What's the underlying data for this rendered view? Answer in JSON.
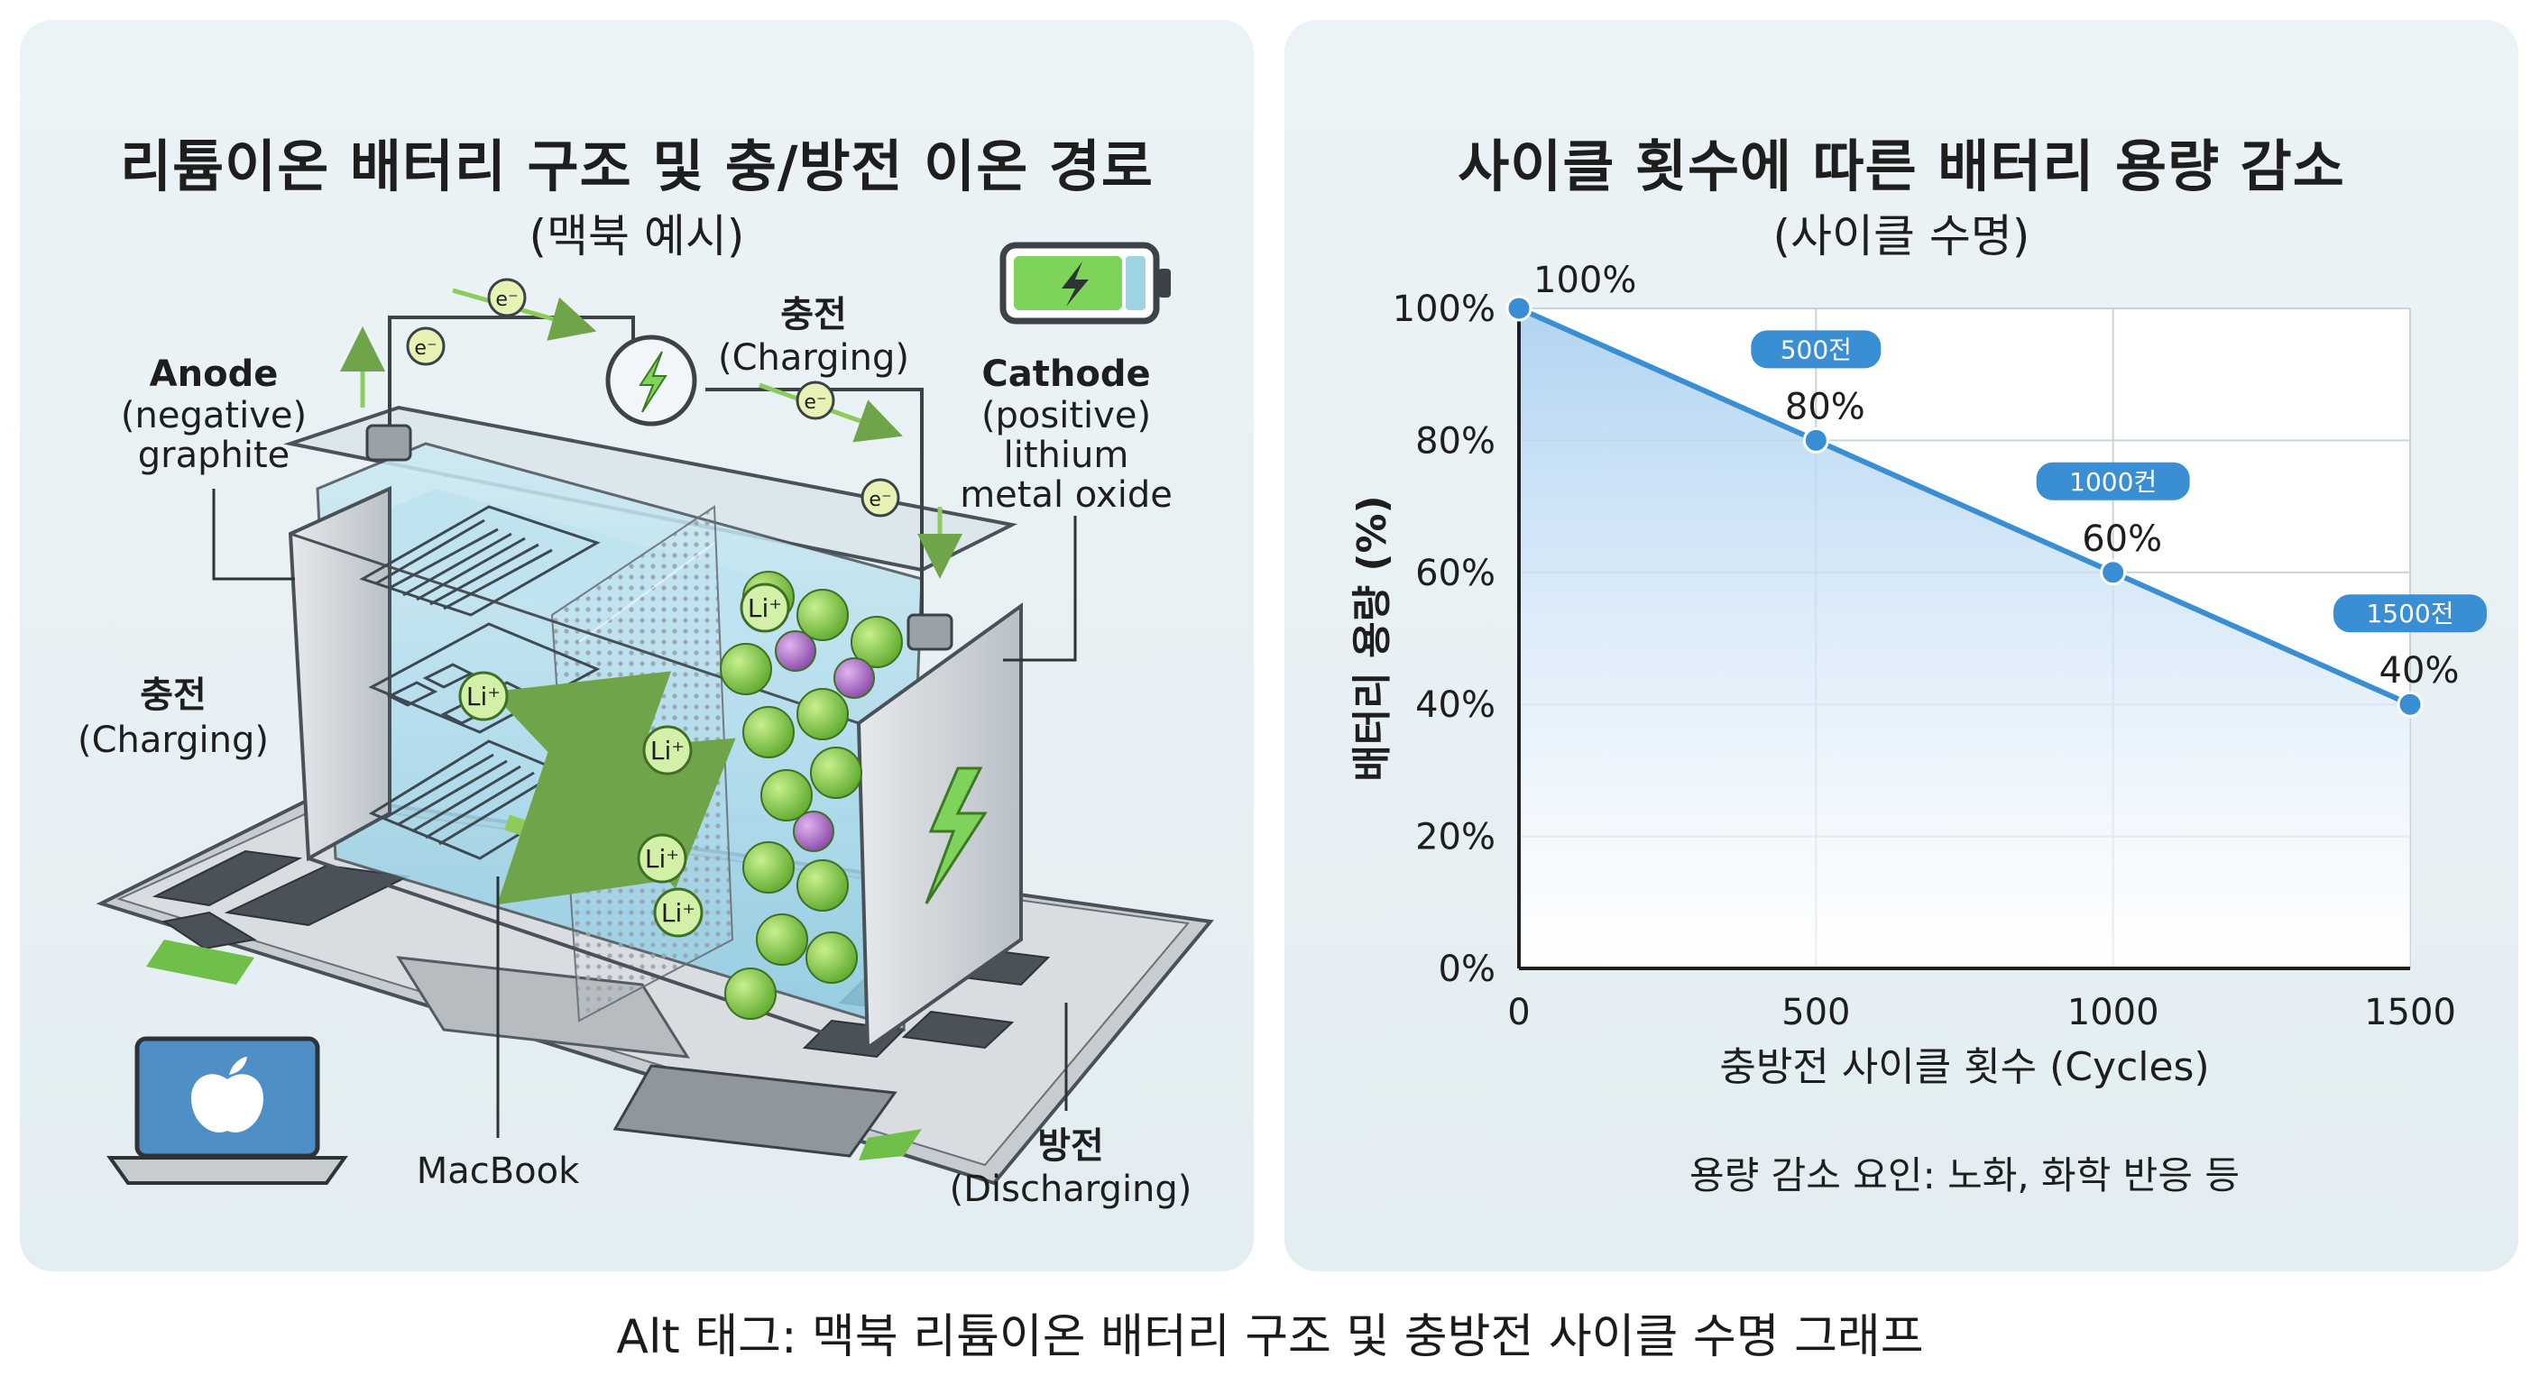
{
  "left": {
    "title": "리튬이온 배터리 구조 및 충/방전 이온 경로",
    "subtitle": "(맥북 예시)",
    "labels": {
      "anode_title": "Anode",
      "anode_line2": "(negative)",
      "anode_line3": "graphite",
      "cathode_title": "Cathode",
      "cathode_line2": "(positive)",
      "cathode_line3": "lithium",
      "cathode_line4": "metal oxide",
      "charge_top_ko": "충전",
      "charge_top_en": "(Charging)",
      "charge_left_ko": "충전",
      "charge_left_en": "(Charging)",
      "discharge_ko": "방전",
      "discharge_en": "(Discharging)",
      "macbook": "MacBook",
      "electron": "e⁻",
      "lithium_ion": "Li⁺"
    },
    "colors": {
      "electrolyte": "#9fd3e6",
      "cathode_particle": "#8ccb52",
      "cathode_particle_alt": "#a46bc0",
      "arrow": "#8dcc5a",
      "battery_fill": "#7ed35a"
    }
  },
  "right": {
    "title": "사이클 횟수에 따른 배터리 용량 감소",
    "subtitle": "(사이클 수명)",
    "footnote": "용량 감소 요인: 노화, 화학 반응 등"
  },
  "chart_data": {
    "type": "area",
    "title": "사이클 횟수에 따른 배터리 용량 감소",
    "subtitle": "(사이클 수명)",
    "xlabel": "충방전 사이클 횟수 (Cycles)",
    "ylabel": "배터리 용량 (%)",
    "x": [
      0,
      500,
      1000,
      1500
    ],
    "x_ticks": [
      "0",
      "500",
      "1000",
      "1500"
    ],
    "xlim": [
      0,
      1500
    ],
    "y_ticks": [
      "0%",
      "20%",
      "40%",
      "60%",
      "80%",
      "100%"
    ],
    "ylim": [
      0,
      100
    ],
    "grid": true,
    "series": [
      {
        "values": [
          100,
          80,
          60,
          40
        ],
        "data_labels": [
          "100%",
          "80%",
          "60%",
          "40%"
        ],
        "badges": [
          "",
          "500전",
          "1000컨",
          "1500전"
        ],
        "color": "#3a8fd4"
      }
    ]
  },
  "footer": {
    "alt_text": "Alt 태그: 맥북 리튬이온 배터리 구조 및 충방전 사이클 수명 그래프"
  }
}
